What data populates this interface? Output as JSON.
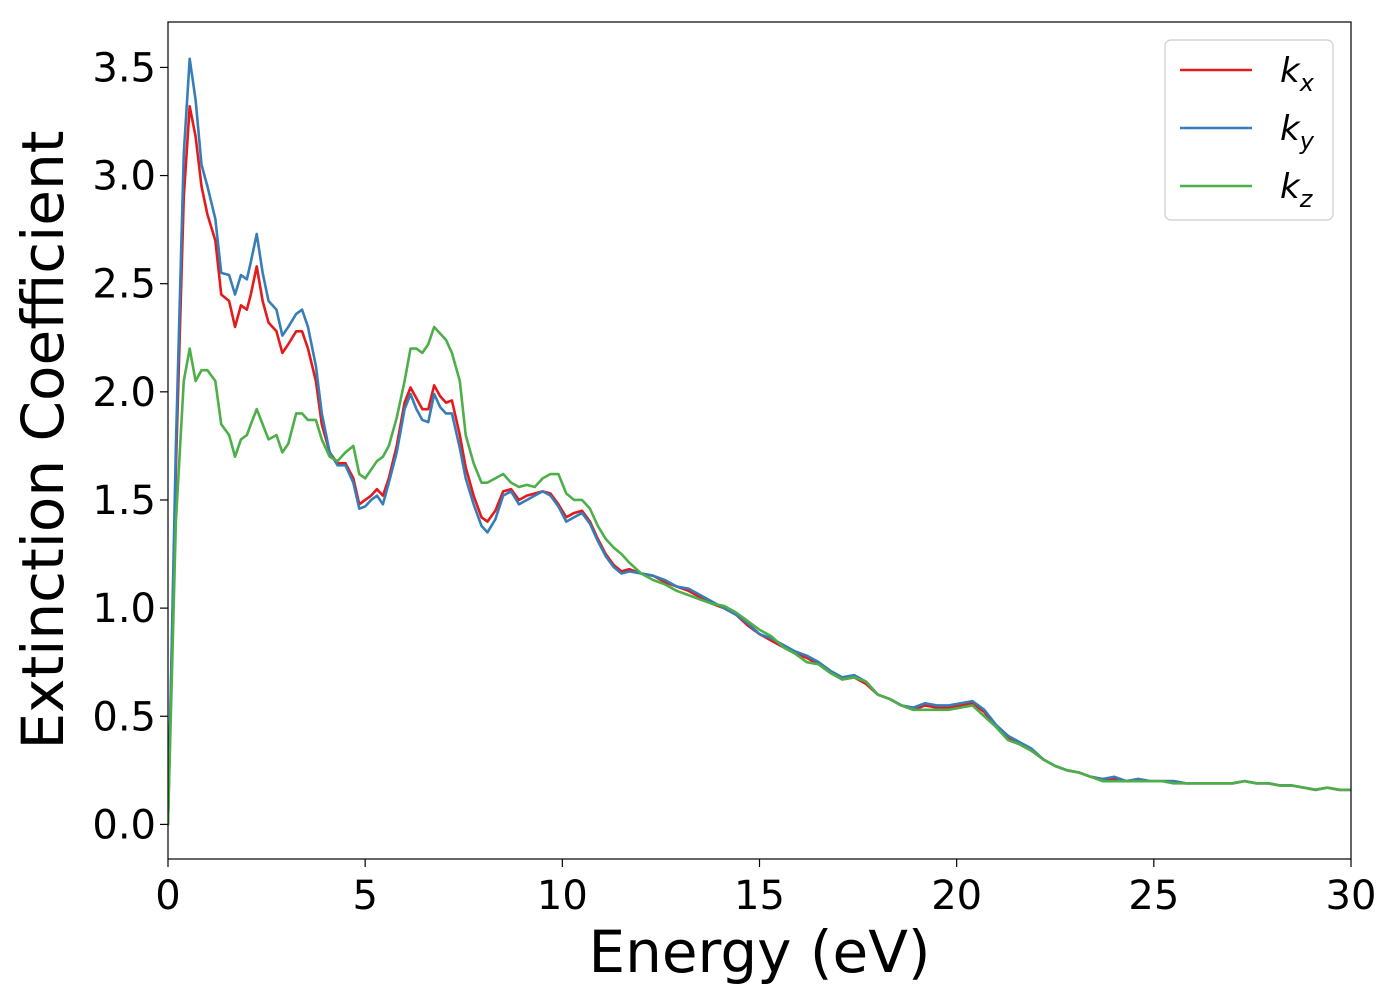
{
  "chart_data": {
    "type": "line",
    "xlabel": "Energy (eV)",
    "ylabel": "Extinction Coefficient",
    "xlim": [
      0,
      30
    ],
    "ylim": [
      -0.16,
      3.71
    ],
    "xticks": [
      0,
      5,
      10,
      15,
      20,
      25,
      30
    ],
    "xtick_labels": [
      "0",
      "5",
      "10",
      "15",
      "20",
      "25",
      "30"
    ],
    "yticks": [
      0.0,
      0.5,
      1.0,
      1.5,
      2.0,
      2.5,
      3.0,
      3.5
    ],
    "ytick_labels": [
      "0.0",
      "0.5",
      "1.0",
      "1.5",
      "2.0",
      "2.5",
      "3.0",
      "3.5"
    ],
    "grid": false,
    "legend_position": "top-right",
    "series": [
      {
        "name": "k",
        "subscript": "x",
        "color": "#e41a1c",
        "x": [
          0,
          0.2,
          0.4,
          0.55,
          0.7,
          0.85,
          1.0,
          1.2,
          1.35,
          1.55,
          1.7,
          1.85,
          2.0,
          2.1,
          2.25,
          2.4,
          2.55,
          2.75,
          2.9,
          3.05,
          3.25,
          3.4,
          3.55,
          3.75,
          3.9,
          4.1,
          4.3,
          4.5,
          4.7,
          4.85,
          5.0,
          5.15,
          5.3,
          5.45,
          5.6,
          5.8,
          6.0,
          6.15,
          6.3,
          6.45,
          6.6,
          6.75,
          6.9,
          7.05,
          7.2,
          7.4,
          7.55,
          7.75,
          7.95,
          8.1,
          8.3,
          8.5,
          8.7,
          8.9,
          9.1,
          9.3,
          9.5,
          9.7,
          9.9,
          10.1,
          10.3,
          10.5,
          10.7,
          10.9,
          11.1,
          11.3,
          11.5,
          11.7,
          12.0,
          12.3,
          12.6,
          12.9,
          13.2,
          13.5,
          13.8,
          14.1,
          14.4,
          14.7,
          15.0,
          15.3,
          15.6,
          15.9,
          16.2,
          16.5,
          16.8,
          17.1,
          17.4,
          17.7,
          18.0,
          18.3,
          18.6,
          18.9,
          19.2,
          19.5,
          19.8,
          20.1,
          20.4,
          20.7,
          21.0,
          21.3,
          21.6,
          21.9,
          22.2,
          22.5,
          22.8,
          23.1,
          23.4,
          23.7,
          24.0,
          24.3,
          24.6,
          24.9,
          25.2,
          25.5,
          25.8,
          26.1,
          26.4,
          26.7,
          27.0,
          27.3,
          27.6,
          27.9,
          28.2,
          28.5,
          28.8,
          29.1,
          29.4,
          29.7,
          30.0
        ],
        "y": [
          0.0,
          1.65,
          2.9,
          3.32,
          3.18,
          2.95,
          2.82,
          2.7,
          2.45,
          2.42,
          2.3,
          2.4,
          2.38,
          2.45,
          2.58,
          2.42,
          2.32,
          2.28,
          2.18,
          2.22,
          2.28,
          2.28,
          2.2,
          2.05,
          1.85,
          1.72,
          1.67,
          1.67,
          1.6,
          1.48,
          1.5,
          1.52,
          1.55,
          1.52,
          1.6,
          1.75,
          1.95,
          2.02,
          1.97,
          1.92,
          1.92,
          2.03,
          1.98,
          1.95,
          1.96,
          1.8,
          1.65,
          1.52,
          1.42,
          1.4,
          1.45,
          1.54,
          1.55,
          1.5,
          1.52,
          1.53,
          1.54,
          1.53,
          1.48,
          1.42,
          1.44,
          1.45,
          1.4,
          1.32,
          1.25,
          1.2,
          1.17,
          1.18,
          1.16,
          1.15,
          1.12,
          1.1,
          1.08,
          1.05,
          1.02,
          1.0,
          0.97,
          0.92,
          0.88,
          0.85,
          0.82,
          0.79,
          0.77,
          0.74,
          0.7,
          0.67,
          0.68,
          0.65,
          0.6,
          0.58,
          0.55,
          0.53,
          0.55,
          0.54,
          0.54,
          0.55,
          0.56,
          0.52,
          0.45,
          0.4,
          0.37,
          0.34,
          0.3,
          0.27,
          0.25,
          0.24,
          0.22,
          0.21,
          0.21,
          0.2,
          0.21,
          0.2,
          0.2,
          0.2,
          0.19,
          0.19,
          0.19,
          0.19,
          0.19,
          0.2,
          0.19,
          0.19,
          0.18,
          0.18,
          0.17,
          0.16,
          0.17,
          0.16,
          0.16
        ]
      },
      {
        "name": "k",
        "subscript": "y",
        "color": "#377eb8",
        "x": [
          0,
          0.2,
          0.4,
          0.55,
          0.7,
          0.85,
          1.0,
          1.2,
          1.35,
          1.55,
          1.7,
          1.85,
          2.0,
          2.1,
          2.25,
          2.4,
          2.55,
          2.75,
          2.9,
          3.05,
          3.25,
          3.4,
          3.55,
          3.75,
          3.9,
          4.1,
          4.3,
          4.5,
          4.7,
          4.85,
          5.0,
          5.15,
          5.3,
          5.45,
          5.6,
          5.8,
          6.0,
          6.15,
          6.3,
          6.45,
          6.6,
          6.75,
          6.9,
          7.05,
          7.2,
          7.4,
          7.55,
          7.75,
          7.95,
          8.1,
          8.3,
          8.5,
          8.7,
          8.9,
          9.1,
          9.3,
          9.5,
          9.7,
          9.9,
          10.1,
          10.3,
          10.5,
          10.7,
          10.9,
          11.1,
          11.3,
          11.5,
          11.7,
          12.0,
          12.3,
          12.6,
          12.9,
          13.2,
          13.5,
          13.8,
          14.1,
          14.4,
          14.7,
          15.0,
          15.3,
          15.6,
          15.9,
          16.2,
          16.5,
          16.8,
          17.1,
          17.4,
          17.7,
          18.0,
          18.3,
          18.6,
          18.9,
          19.2,
          19.5,
          19.8,
          20.1,
          20.4,
          20.7,
          21.0,
          21.3,
          21.6,
          21.9,
          22.2,
          22.5,
          22.8,
          23.1,
          23.4,
          23.7,
          24.0,
          24.3,
          24.6,
          24.9,
          25.2,
          25.5,
          25.8,
          26.1,
          26.4,
          26.7,
          27.0,
          27.3,
          27.6,
          27.9,
          28.2,
          28.5,
          28.8,
          29.1,
          29.4,
          29.7,
          30.0
        ],
        "y": [
          0.0,
          1.75,
          3.1,
          3.54,
          3.35,
          3.05,
          2.95,
          2.8,
          2.55,
          2.54,
          2.45,
          2.54,
          2.52,
          2.6,
          2.73,
          2.55,
          2.42,
          2.38,
          2.26,
          2.3,
          2.36,
          2.38,
          2.3,
          2.12,
          1.9,
          1.72,
          1.66,
          1.66,
          1.58,
          1.46,
          1.47,
          1.5,
          1.52,
          1.48,
          1.58,
          1.72,
          1.92,
          1.99,
          1.92,
          1.87,
          1.86,
          1.99,
          1.93,
          1.9,
          1.9,
          1.74,
          1.6,
          1.48,
          1.38,
          1.35,
          1.41,
          1.52,
          1.54,
          1.48,
          1.5,
          1.52,
          1.54,
          1.52,
          1.47,
          1.4,
          1.42,
          1.44,
          1.39,
          1.31,
          1.24,
          1.19,
          1.16,
          1.17,
          1.16,
          1.15,
          1.13,
          1.1,
          1.09,
          1.06,
          1.03,
          1.0,
          0.97,
          0.93,
          0.88,
          0.86,
          0.83,
          0.8,
          0.78,
          0.75,
          0.71,
          0.68,
          0.69,
          0.66,
          0.6,
          0.58,
          0.55,
          0.54,
          0.56,
          0.55,
          0.55,
          0.56,
          0.57,
          0.53,
          0.46,
          0.41,
          0.38,
          0.35,
          0.3,
          0.27,
          0.25,
          0.24,
          0.22,
          0.21,
          0.22,
          0.2,
          0.21,
          0.2,
          0.2,
          0.2,
          0.19,
          0.19,
          0.19,
          0.19,
          0.19,
          0.2,
          0.19,
          0.19,
          0.18,
          0.18,
          0.17,
          0.16,
          0.17,
          0.16,
          0.16
        ]
      },
      {
        "name": "k",
        "subscript": "z",
        "color": "#4daf4a",
        "x": [
          0,
          0.2,
          0.4,
          0.55,
          0.7,
          0.85,
          1.0,
          1.2,
          1.35,
          1.55,
          1.7,
          1.85,
          2.0,
          2.1,
          2.25,
          2.4,
          2.55,
          2.75,
          2.9,
          3.05,
          3.25,
          3.4,
          3.55,
          3.75,
          3.9,
          4.1,
          4.3,
          4.5,
          4.7,
          4.85,
          5.0,
          5.15,
          5.3,
          5.45,
          5.6,
          5.8,
          6.0,
          6.15,
          6.3,
          6.45,
          6.6,
          6.75,
          6.9,
          7.05,
          7.2,
          7.4,
          7.55,
          7.75,
          7.95,
          8.1,
          8.3,
          8.5,
          8.7,
          8.9,
          9.1,
          9.3,
          9.5,
          9.7,
          9.9,
          10.1,
          10.3,
          10.5,
          10.7,
          10.9,
          11.1,
          11.3,
          11.5,
          11.7,
          12.0,
          12.3,
          12.6,
          12.9,
          13.2,
          13.5,
          13.8,
          14.1,
          14.4,
          14.7,
          15.0,
          15.3,
          15.6,
          15.9,
          16.2,
          16.5,
          16.8,
          17.1,
          17.4,
          17.7,
          18.0,
          18.3,
          18.6,
          18.9,
          19.2,
          19.5,
          19.8,
          20.1,
          20.4,
          20.7,
          21.0,
          21.3,
          21.6,
          21.9,
          22.2,
          22.5,
          22.8,
          23.1,
          23.4,
          23.7,
          24.0,
          24.3,
          24.6,
          24.9,
          25.2,
          25.5,
          25.8,
          26.1,
          26.4,
          26.7,
          27.0,
          27.3,
          27.6,
          27.9,
          28.2,
          28.5,
          28.8,
          29.1,
          29.4,
          29.7,
          30.0
        ],
        "y": [
          0.0,
          1.4,
          2.05,
          2.2,
          2.05,
          2.1,
          2.1,
          2.05,
          1.85,
          1.8,
          1.7,
          1.78,
          1.8,
          1.85,
          1.92,
          1.85,
          1.78,
          1.8,
          1.72,
          1.76,
          1.9,
          1.9,
          1.87,
          1.87,
          1.78,
          1.7,
          1.68,
          1.72,
          1.75,
          1.62,
          1.6,
          1.64,
          1.68,
          1.7,
          1.75,
          1.88,
          2.05,
          2.2,
          2.2,
          2.18,
          2.22,
          2.3,
          2.27,
          2.24,
          2.18,
          2.05,
          1.8,
          1.67,
          1.58,
          1.58,
          1.6,
          1.62,
          1.58,
          1.56,
          1.57,
          1.56,
          1.6,
          1.62,
          1.62,
          1.53,
          1.5,
          1.5,
          1.46,
          1.38,
          1.32,
          1.28,
          1.25,
          1.21,
          1.16,
          1.13,
          1.11,
          1.08,
          1.06,
          1.04,
          1.02,
          1.01,
          0.98,
          0.94,
          0.9,
          0.87,
          0.82,
          0.79,
          0.75,
          0.74,
          0.7,
          0.67,
          0.68,
          0.66,
          0.6,
          0.58,
          0.55,
          0.53,
          0.53,
          0.53,
          0.53,
          0.54,
          0.55,
          0.5,
          0.45,
          0.39,
          0.37,
          0.34,
          0.3,
          0.27,
          0.25,
          0.24,
          0.22,
          0.2,
          0.2,
          0.2,
          0.2,
          0.2,
          0.2,
          0.19,
          0.19,
          0.19,
          0.19,
          0.19,
          0.19,
          0.2,
          0.19,
          0.19,
          0.18,
          0.18,
          0.17,
          0.16,
          0.17,
          0.16,
          0.16
        ]
      }
    ]
  }
}
